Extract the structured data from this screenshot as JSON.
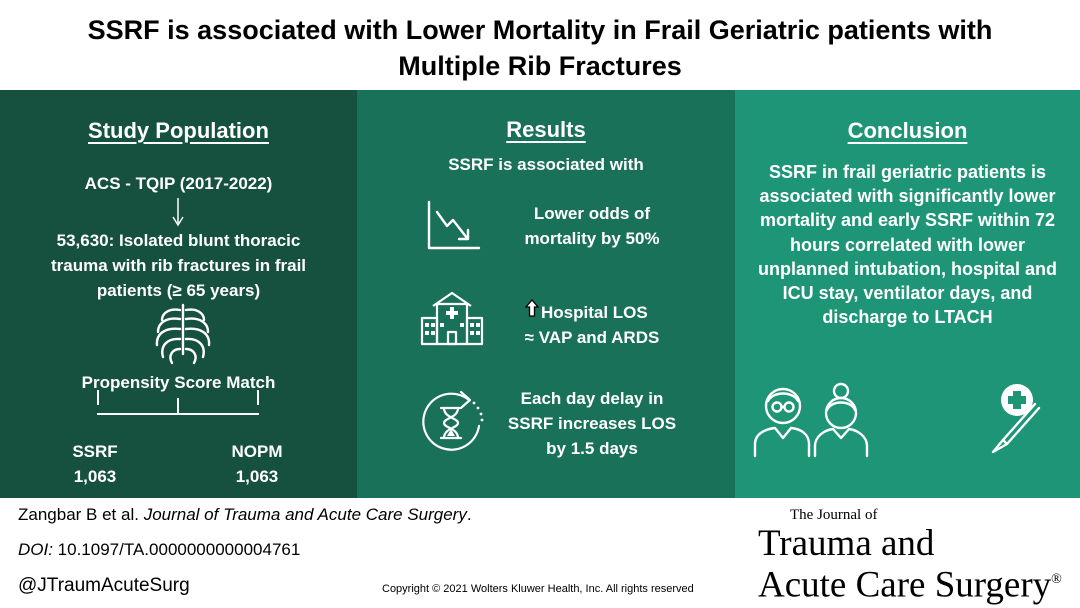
{
  "title": "SSRF is associated with Lower Mortality in Frail Geriatric patients with Multiple Rib Fractures",
  "population": {
    "heading": "Study Population",
    "source": "ACS - TQIP (2017-2022)",
    "cohort": "53,630: Isolated blunt thoracic trauma with rib fractures in frail patients (≥ 65 years)",
    "match": "Propensity Score Match",
    "group1_name": "SSRF",
    "group1_n": "1,063",
    "group2_name": "NOPM",
    "group2_n": "1,063",
    "icons": [
      "down-arrow-icon",
      "rib-cage-icon"
    ]
  },
  "results": {
    "heading": "Results",
    "intro": "SSRF is associated with",
    "item1": "Lower odds of mortality by 50%",
    "item2_line1": "Hospital LOS",
    "item2_line2": "≈ VAP and ARDS",
    "item3": "Each day delay in SSRF increases LOS by 1.5 days",
    "icons": [
      "declining-chart-icon",
      "hospital-icon",
      "up-arrow-icon",
      "hourglass-timer-icon"
    ]
  },
  "conclusion": {
    "heading": "Conclusion",
    "text": "SSRF in frail geriatric patients is associated with significantly lower mortality and early SSRF within 72 hours correlated with lower unplanned intubation, hospital and ICU stay, ventilator days, and discharge to LTACH",
    "icons": [
      "elderly-couple-icon",
      "scalpel-icon"
    ]
  },
  "footer": {
    "authors": "Zangbar B et al. ",
    "journal_name": "Journal of Trauma and Acute Care Surgery",
    "period": ".",
    "doi_label": "DOI:",
    "doi_value": " 10.1097/TA.0000000000004761",
    "handle": "@JTraumAcuteSurg",
    "copyright": "Copyright © 2021  Wolters Kluwer Health, Inc. All rights reserved"
  },
  "journal_logo": {
    "line1": "The Journal of",
    "line2": "Trauma and",
    "line3": "Acute Care Surgery",
    "mark": "®"
  },
  "colors": {
    "panel1": "#16513f",
    "panel2": "#1a7159",
    "panel3": "#1f9577"
  }
}
